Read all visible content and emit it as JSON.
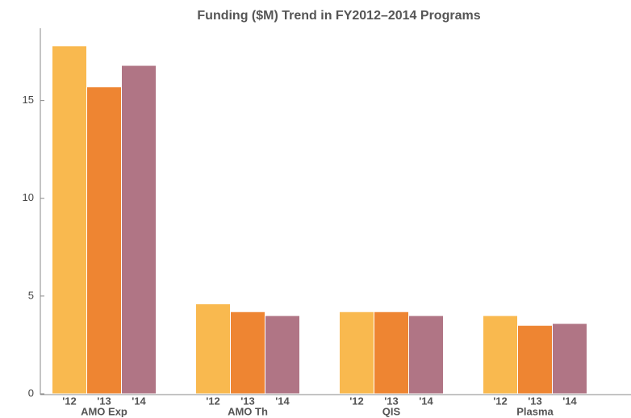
{
  "chart_data": {
    "type": "bar",
    "title": "Funding ($M) Trend in FY2012–2014 Programs",
    "categories": [
      "AMO Exp",
      "AMO Th",
      "QIS",
      "Plasma"
    ],
    "series": [
      {
        "name": "'12",
        "color": "#f9b94f",
        "values": [
          17.8,
          4.6,
          4.2,
          4.0
        ]
      },
      {
        "name": "'13",
        "color": "#ee8532",
        "values": [
          15.7,
          4.2,
          4.2,
          3.5
        ]
      },
      {
        "name": "'14",
        "color": "#b07585",
        "values": [
          16.8,
          4.0,
          4.0,
          3.6
        ]
      }
    ],
    "ylim": [
      0,
      18.7
    ],
    "yticks": [
      0,
      5,
      10,
      15
    ]
  }
}
